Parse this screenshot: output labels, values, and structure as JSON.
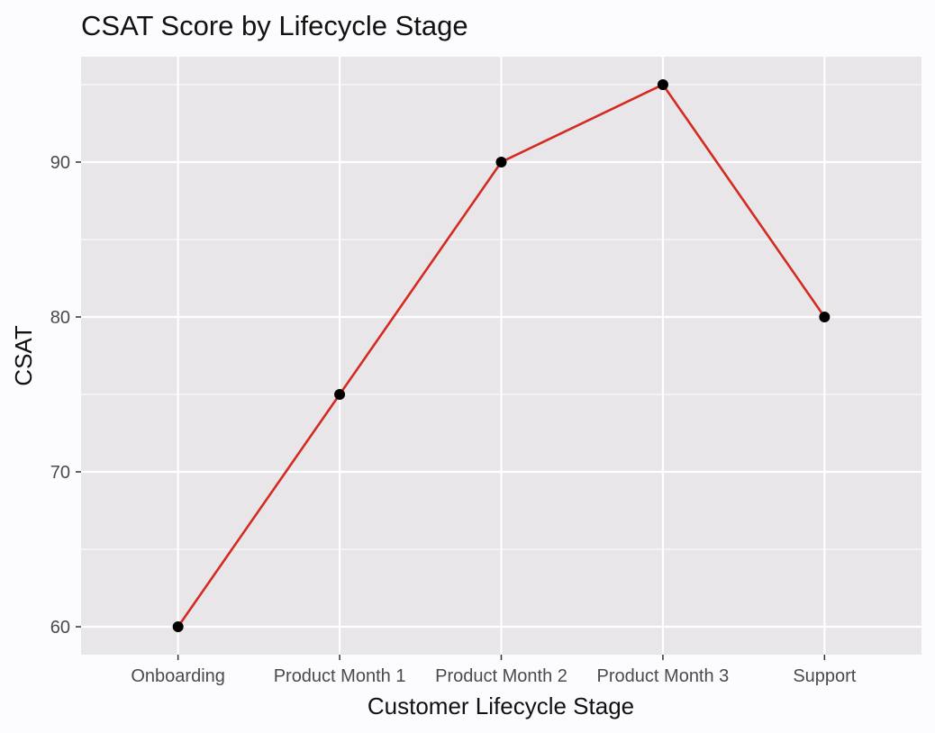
{
  "chart_data": {
    "type": "line",
    "title": "CSAT Score by Lifecycle Stage",
    "xlabel": "Customer Lifecycle Stage",
    "ylabel": "CSAT",
    "categories": [
      "Onboarding",
      "Product Month 1",
      "Product Month 2",
      "Product Month 3",
      "Support"
    ],
    "series": [
      {
        "name": "CSAT",
        "values": [
          60,
          75,
          90,
          95,
          80
        ]
      }
    ],
    "y_ticks": [
      60,
      70,
      80,
      90
    ],
    "ylim": [
      58.2,
      96.8
    ],
    "grid": true,
    "colors": {
      "line": "#d42a20",
      "point": "#000000",
      "panel_background": "#e8e6e9",
      "grid": "#ffffff"
    }
  }
}
